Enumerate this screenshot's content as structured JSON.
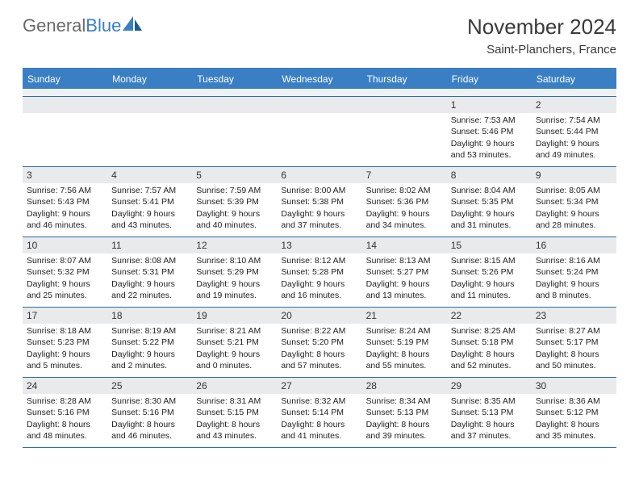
{
  "logo": {
    "text_gray": "General",
    "text_blue": "Blue"
  },
  "title": "November 2024",
  "location": "Saint-Planchers, France",
  "colors": {
    "header_bg": "#3a7fc4",
    "header_text": "#ffffff",
    "daynum_bg": "#e8eaec",
    "border": "#2d6ca8",
    "text": "#333333",
    "background": "#ffffff"
  },
  "days_of_week": [
    "Sunday",
    "Monday",
    "Tuesday",
    "Wednesday",
    "Thursday",
    "Friday",
    "Saturday"
  ],
  "weeks": [
    [
      {
        "n": "",
        "sr": "",
        "ss": "",
        "dl": ""
      },
      {
        "n": "",
        "sr": "",
        "ss": "",
        "dl": ""
      },
      {
        "n": "",
        "sr": "",
        "ss": "",
        "dl": ""
      },
      {
        "n": "",
        "sr": "",
        "ss": "",
        "dl": ""
      },
      {
        "n": "",
        "sr": "",
        "ss": "",
        "dl": ""
      },
      {
        "n": "1",
        "sr": "Sunrise: 7:53 AM",
        "ss": "Sunset: 5:46 PM",
        "dl": "Daylight: 9 hours and 53 minutes."
      },
      {
        "n": "2",
        "sr": "Sunrise: 7:54 AM",
        "ss": "Sunset: 5:44 PM",
        "dl": "Daylight: 9 hours and 49 minutes."
      }
    ],
    [
      {
        "n": "3",
        "sr": "Sunrise: 7:56 AM",
        "ss": "Sunset: 5:43 PM",
        "dl": "Daylight: 9 hours and 46 minutes."
      },
      {
        "n": "4",
        "sr": "Sunrise: 7:57 AM",
        "ss": "Sunset: 5:41 PM",
        "dl": "Daylight: 9 hours and 43 minutes."
      },
      {
        "n": "5",
        "sr": "Sunrise: 7:59 AM",
        "ss": "Sunset: 5:39 PM",
        "dl": "Daylight: 9 hours and 40 minutes."
      },
      {
        "n": "6",
        "sr": "Sunrise: 8:00 AM",
        "ss": "Sunset: 5:38 PM",
        "dl": "Daylight: 9 hours and 37 minutes."
      },
      {
        "n": "7",
        "sr": "Sunrise: 8:02 AM",
        "ss": "Sunset: 5:36 PM",
        "dl": "Daylight: 9 hours and 34 minutes."
      },
      {
        "n": "8",
        "sr": "Sunrise: 8:04 AM",
        "ss": "Sunset: 5:35 PM",
        "dl": "Daylight: 9 hours and 31 minutes."
      },
      {
        "n": "9",
        "sr": "Sunrise: 8:05 AM",
        "ss": "Sunset: 5:34 PM",
        "dl": "Daylight: 9 hours and 28 minutes."
      }
    ],
    [
      {
        "n": "10",
        "sr": "Sunrise: 8:07 AM",
        "ss": "Sunset: 5:32 PM",
        "dl": "Daylight: 9 hours and 25 minutes."
      },
      {
        "n": "11",
        "sr": "Sunrise: 8:08 AM",
        "ss": "Sunset: 5:31 PM",
        "dl": "Daylight: 9 hours and 22 minutes."
      },
      {
        "n": "12",
        "sr": "Sunrise: 8:10 AM",
        "ss": "Sunset: 5:29 PM",
        "dl": "Daylight: 9 hours and 19 minutes."
      },
      {
        "n": "13",
        "sr": "Sunrise: 8:12 AM",
        "ss": "Sunset: 5:28 PM",
        "dl": "Daylight: 9 hours and 16 minutes."
      },
      {
        "n": "14",
        "sr": "Sunrise: 8:13 AM",
        "ss": "Sunset: 5:27 PM",
        "dl": "Daylight: 9 hours and 13 minutes."
      },
      {
        "n": "15",
        "sr": "Sunrise: 8:15 AM",
        "ss": "Sunset: 5:26 PM",
        "dl": "Daylight: 9 hours and 11 minutes."
      },
      {
        "n": "16",
        "sr": "Sunrise: 8:16 AM",
        "ss": "Sunset: 5:24 PM",
        "dl": "Daylight: 9 hours and 8 minutes."
      }
    ],
    [
      {
        "n": "17",
        "sr": "Sunrise: 8:18 AM",
        "ss": "Sunset: 5:23 PM",
        "dl": "Daylight: 9 hours and 5 minutes."
      },
      {
        "n": "18",
        "sr": "Sunrise: 8:19 AM",
        "ss": "Sunset: 5:22 PM",
        "dl": "Daylight: 9 hours and 2 minutes."
      },
      {
        "n": "19",
        "sr": "Sunrise: 8:21 AM",
        "ss": "Sunset: 5:21 PM",
        "dl": "Daylight: 9 hours and 0 minutes."
      },
      {
        "n": "20",
        "sr": "Sunrise: 8:22 AM",
        "ss": "Sunset: 5:20 PM",
        "dl": "Daylight: 8 hours and 57 minutes."
      },
      {
        "n": "21",
        "sr": "Sunrise: 8:24 AM",
        "ss": "Sunset: 5:19 PM",
        "dl": "Daylight: 8 hours and 55 minutes."
      },
      {
        "n": "22",
        "sr": "Sunrise: 8:25 AM",
        "ss": "Sunset: 5:18 PM",
        "dl": "Daylight: 8 hours and 52 minutes."
      },
      {
        "n": "23",
        "sr": "Sunrise: 8:27 AM",
        "ss": "Sunset: 5:17 PM",
        "dl": "Daylight: 8 hours and 50 minutes."
      }
    ],
    [
      {
        "n": "24",
        "sr": "Sunrise: 8:28 AM",
        "ss": "Sunset: 5:16 PM",
        "dl": "Daylight: 8 hours and 48 minutes."
      },
      {
        "n": "25",
        "sr": "Sunrise: 8:30 AM",
        "ss": "Sunset: 5:16 PM",
        "dl": "Daylight: 8 hours and 46 minutes."
      },
      {
        "n": "26",
        "sr": "Sunrise: 8:31 AM",
        "ss": "Sunset: 5:15 PM",
        "dl": "Daylight: 8 hours and 43 minutes."
      },
      {
        "n": "27",
        "sr": "Sunrise: 8:32 AM",
        "ss": "Sunset: 5:14 PM",
        "dl": "Daylight: 8 hours and 41 minutes."
      },
      {
        "n": "28",
        "sr": "Sunrise: 8:34 AM",
        "ss": "Sunset: 5:13 PM",
        "dl": "Daylight: 8 hours and 39 minutes."
      },
      {
        "n": "29",
        "sr": "Sunrise: 8:35 AM",
        "ss": "Sunset: 5:13 PM",
        "dl": "Daylight: 8 hours and 37 minutes."
      },
      {
        "n": "30",
        "sr": "Sunrise: 8:36 AM",
        "ss": "Sunset: 5:12 PM",
        "dl": "Daylight: 8 hours and 35 minutes."
      }
    ]
  ]
}
